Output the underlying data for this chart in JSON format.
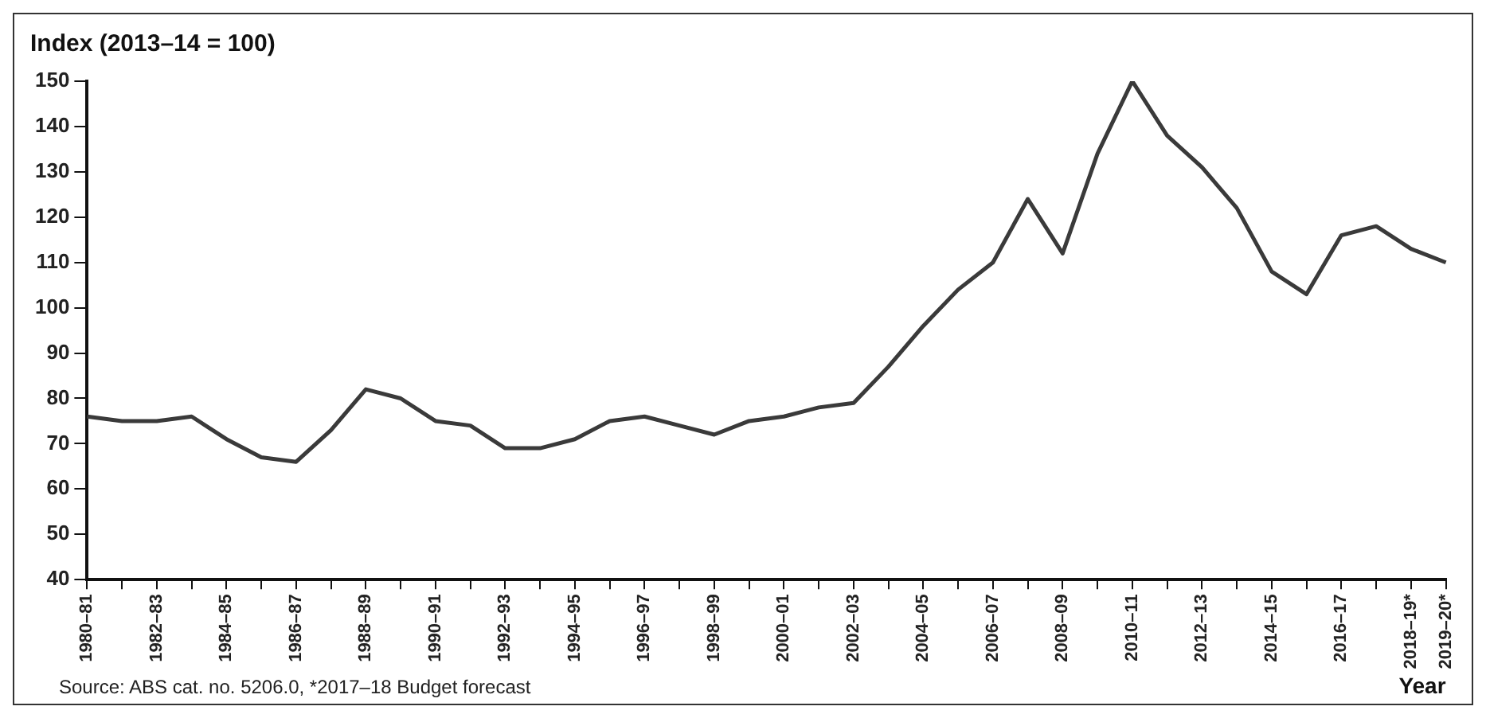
{
  "chart_data": {
    "type": "line",
    "title": "Index (2013–14 = 100)",
    "xlabel": "Year",
    "categories": [
      "1980–81",
      null,
      "1982–83",
      null,
      "1984–85",
      null,
      "1986–87",
      null,
      "1988–89",
      null,
      "1990–91",
      null,
      "1992–93",
      null,
      "1994–95",
      null,
      "1996–97",
      null,
      "1998–99",
      null,
      "2000–01",
      null,
      "2002–03",
      null,
      "2004–05",
      null,
      "2006–07",
      null,
      "2008–09",
      null,
      "2010–11",
      null,
      "2012–13",
      null,
      "2014–15",
      null,
      "2016–17",
      null,
      "2018–19*",
      "2019–20*"
    ],
    "series": [
      {
        "color": "#3a3a3a",
        "values": [
          76,
          75,
          75,
          76,
          71,
          67,
          66,
          73,
          82,
          80,
          75,
          74,
          69,
          69,
          71,
          75,
          76,
          74,
          72,
          75,
          76,
          78,
          79,
          87,
          96,
          104,
          110,
          124,
          112,
          134,
          150,
          138,
          131,
          122,
          108,
          103,
          116,
          118,
          113,
          110
        ]
      }
    ],
    "ylim": [
      40,
      150
    ],
    "yticks": [
      40,
      50,
      60,
      70,
      80,
      90,
      100,
      110,
      120,
      130,
      140,
      150
    ],
    "grid": false,
    "legend": false,
    "marker": "none",
    "line_style": "solid",
    "annotations": [
      "Source: ABS cat. no. 5206.0, *2017–18 Budget forecast"
    ]
  }
}
